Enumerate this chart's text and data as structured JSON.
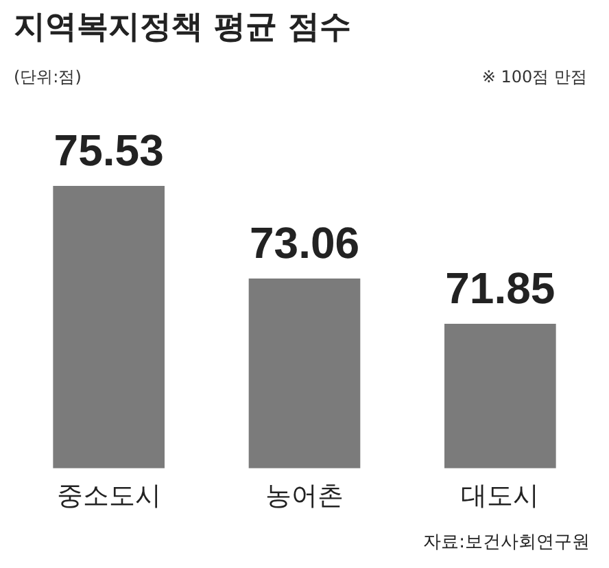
{
  "chart_data": {
    "type": "bar",
    "title": "지역복지정책 평균 점수",
    "subtitle": "(단위:점)",
    "categories": [
      "중소도시",
      "농어촌",
      "대도시"
    ],
    "values": [
      75.53,
      73.06,
      71.85
    ],
    "color": "#7b7b7b",
    "data_labels": true,
    "grid": false,
    "legend": false,
    "annotations": [
      "※ 100점 만점",
      "자료:보건사회연구원"
    ]
  }
}
